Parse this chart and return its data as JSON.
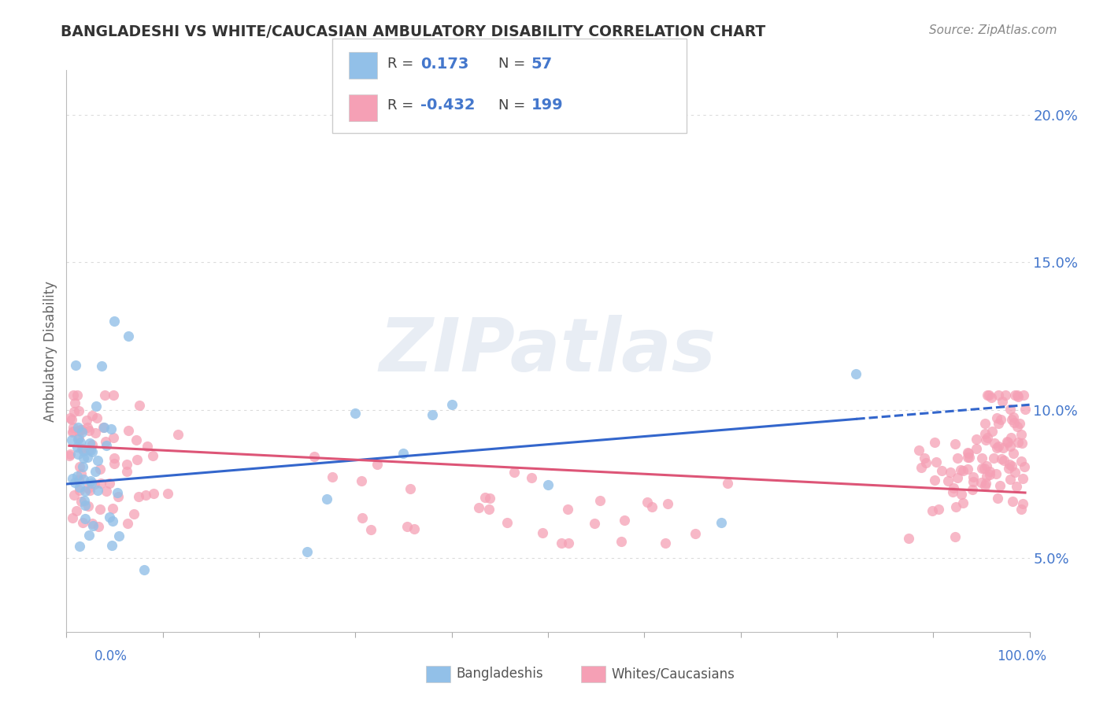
{
  "title": "BANGLADESHI VS WHITE/CAUCASIAN AMBULATORY DISABILITY CORRELATION CHART",
  "source": "Source: ZipAtlas.com",
  "ylabel": "Ambulatory Disability",
  "ytick_values": [
    0.05,
    0.1,
    0.15,
    0.2
  ],
  "xlim": [
    0.0,
    1.0
  ],
  "ylim": [
    0.025,
    0.215
  ],
  "blue_R": 0.173,
  "blue_N": 57,
  "pink_R": -0.432,
  "pink_N": 199,
  "blue_color": "#92c0e8",
  "pink_color": "#f5a0b5",
  "blue_line_color": "#3366cc",
  "pink_line_color": "#dd5577",
  "legend_label_blue": "Bangladeshis",
  "legend_label_pink": "Whites/Caucasians",
  "watermark": "ZIPatlas",
  "title_color": "#333333",
  "axis_color": "#4477cc",
  "blue_seed": 42,
  "pink_seed": 99,
  "grid_color": "#cccccc",
  "grid_alpha": 0.7
}
